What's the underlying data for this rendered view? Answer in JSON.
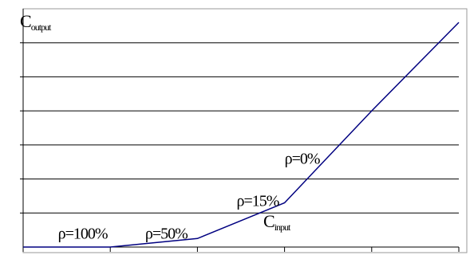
{
  "chart_data": {
    "type": "line",
    "x": [
      0,
      1,
      2,
      3,
      4,
      5
    ],
    "series": [
      {
        "values": [
          0,
          0,
          0.25,
          1.3,
          4.0,
          6.6
        ]
      }
    ],
    "xlim": [
      0,
      5
    ],
    "ylim": [
      0,
      7
    ],
    "grid": true,
    "ylabel": {
      "main": "C",
      "sub": "output"
    },
    "xlabel": {
      "main": "C",
      "sub": "input"
    },
    "annotations": [
      {
        "text": "ρ=100%",
        "x": 0.4,
        "y": 0.25
      },
      {
        "text": "ρ=50%",
        "x": 1.4,
        "y": 0.25
      },
      {
        "text": "ρ=15%",
        "x": 2.45,
        "y": 1.2
      },
      {
        "text": "ρ=0%",
        "x": 3.0,
        "y": 2.45
      }
    ],
    "colors": {
      "line": "#000080",
      "grid": "#000000",
      "axis": "#000000"
    }
  }
}
